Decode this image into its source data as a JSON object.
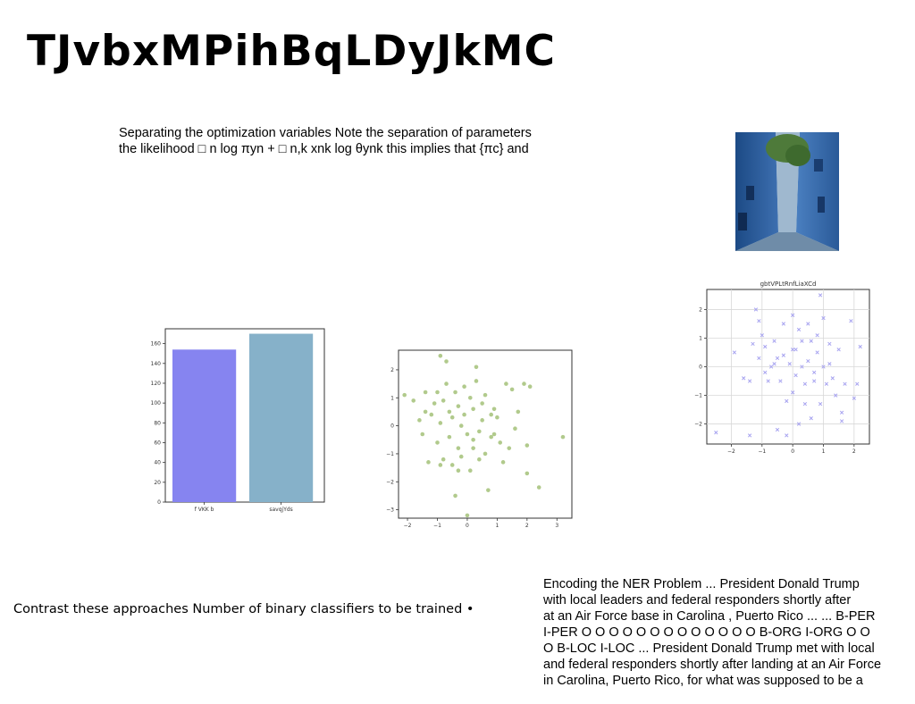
{
  "title": "TJvbxMPihBqLDyJkMC",
  "top_paragraph": {
    "lines": [
      "Separating the optimization variables Note the separation of parameters",
      "the likelihood □ n log πyn + □ n,k xnk log θynk this implies that {πc} and"
    ]
  },
  "left_text": "Contrast these approaches Number of binary classifiers to be trained •",
  "ner_paragraph": {
    "lines": [
      "Encoding the NER Problem ... President Donald Trump",
      "with local leaders and federal responders shortly after",
      "at an Air Force base in Carolina , Puerto Rico ... ... B-PER",
      "I-PER O O O O O O O O O O O O O B-ORG I-ORG O O",
      "O B-LOC I-LOC ... President Donald Trump met with local",
      "and federal responders shortly after landing at an Air Force",
      "in Carolina, Puerto Rico, for what was supposed to be a"
    ]
  },
  "chart_data": [
    {
      "type": "bar",
      "categories": [
        "f VKK b",
        "savqjYds"
      ],
      "values": [
        154,
        170
      ],
      "colors": [
        "#8684f0",
        "#86b1c9"
      ],
      "ylim": [
        0,
        175
      ],
      "yticks": [
        0,
        20,
        40,
        60,
        80,
        100,
        120,
        140,
        160
      ],
      "title": "",
      "xlabel": "",
      "ylabel": ""
    },
    {
      "type": "scatter",
      "marker": "circle",
      "color": "#a9c47f",
      "xlim": [
        -2.3,
        3.5
      ],
      "ylim": [
        -3.3,
        2.7
      ],
      "xticks": [
        -2,
        -1,
        0,
        1,
        2,
        3
      ],
      "yticks": [
        -3,
        -2,
        -1,
        0,
        1,
        2
      ],
      "points": [
        [
          -2.1,
          1.1
        ],
        [
          -1.6,
          0.2
        ],
        [
          -1.5,
          -0.3
        ],
        [
          -1.4,
          0.5
        ],
        [
          -1.3,
          -1.3
        ],
        [
          -1.2,
          0.4
        ],
        [
          -1.1,
          0.8
        ],
        [
          -1.0,
          -0.6
        ],
        [
          -1.0,
          1.2
        ],
        [
          -0.9,
          2.5
        ],
        [
          -0.9,
          0.1
        ],
        [
          -0.8,
          -1.2
        ],
        [
          -0.8,
          0.9
        ],
        [
          -0.7,
          2.3
        ],
        [
          -0.7,
          1.5
        ],
        [
          -0.6,
          0.5
        ],
        [
          -0.6,
          -0.4
        ],
        [
          -0.5,
          -1.4
        ],
        [
          -0.5,
          0.3
        ],
        [
          -0.4,
          -2.5
        ],
        [
          -0.4,
          1.2
        ],
        [
          -0.3,
          0.7
        ],
        [
          -0.3,
          -0.8
        ],
        [
          -0.2,
          0.0
        ],
        [
          -0.2,
          -1.1
        ],
        [
          -0.1,
          1.4
        ],
        [
          -0.1,
          0.4
        ],
        [
          0.0,
          -0.3
        ],
        [
          0.0,
          -3.2
        ],
        [
          0.1,
          1.0
        ],
        [
          0.1,
          -1.6
        ],
        [
          0.2,
          0.6
        ],
        [
          0.2,
          -0.5
        ],
        [
          0.3,
          2.1
        ],
        [
          0.3,
          1.6
        ],
        [
          0.4,
          -0.2
        ],
        [
          0.4,
          -1.2
        ],
        [
          0.5,
          0.8
        ],
        [
          0.5,
          0.2
        ],
        [
          0.6,
          -1.0
        ],
        [
          0.7,
          -2.3
        ],
        [
          0.8,
          0.4
        ],
        [
          0.8,
          -0.4
        ],
        [
          0.9,
          -0.3
        ],
        [
          1.0,
          0.3
        ],
        [
          1.1,
          -0.6
        ],
        [
          1.3,
          1.5
        ],
        [
          1.4,
          -0.8
        ],
        [
          1.5,
          1.3
        ],
        [
          1.6,
          -0.1
        ],
        [
          1.7,
          0.5
        ],
        [
          1.9,
          1.5
        ],
        [
          2.0,
          -0.7
        ],
        [
          2.0,
          -1.7
        ],
        [
          2.1,
          1.4
        ],
        [
          2.4,
          -2.2
        ],
        [
          3.2,
          -0.4
        ],
        [
          -1.8,
          0.9
        ],
        [
          -0.9,
          -1.4
        ],
        [
          0.6,
          1.1
        ],
        [
          1.2,
          -1.3
        ],
        [
          -0.3,
          -1.6
        ],
        [
          0.2,
          -0.8
        ],
        [
          -1.4,
          1.2
        ],
        [
          0.9,
          0.6
        ]
      ]
    },
    {
      "type": "scatter",
      "marker": "x",
      "title": "gbtVPLtRnfLiaXCd",
      "color": "#a7a3f0",
      "grid": true,
      "xlim": [
        -2.8,
        2.5
      ],
      "ylim": [
        -2.7,
        2.7
      ],
      "xticks": [
        -2,
        -1,
        0,
        1,
        2
      ],
      "yticks": [
        -2,
        -1,
        0,
        1,
        2
      ],
      "points": [
        [
          -2.5,
          -2.3
        ],
        [
          -1.9,
          0.5
        ],
        [
          -1.6,
          -0.4
        ],
        [
          -1.4,
          -2.4
        ],
        [
          -1.3,
          0.8
        ],
        [
          -1.2,
          2.0
        ],
        [
          -1.1,
          1.6
        ],
        [
          -1.1,
          0.3
        ],
        [
          -1.0,
          1.1
        ],
        [
          -0.9,
          -0.2
        ],
        [
          -0.9,
          0.7
        ],
        [
          -0.8,
          -0.5
        ],
        [
          -0.7,
          0.0
        ],
        [
          -0.6,
          0.9
        ],
        [
          -0.5,
          0.3
        ],
        [
          -0.5,
          -2.2
        ],
        [
          -0.4,
          -0.5
        ],
        [
          -0.3,
          0.4
        ],
        [
          -0.2,
          -1.2
        ],
        [
          -0.2,
          -2.4
        ],
        [
          -0.1,
          0.1
        ],
        [
          0.0,
          1.8
        ],
        [
          0.0,
          -0.9
        ],
        [
          0.1,
          0.6
        ],
        [
          0.1,
          -0.3
        ],
        [
          0.2,
          1.3
        ],
        [
          0.2,
          -2.0
        ],
        [
          0.3,
          0.9
        ],
        [
          0.4,
          -0.6
        ],
        [
          0.4,
          -1.3
        ],
        [
          0.5,
          0.2
        ],
        [
          0.5,
          1.5
        ],
        [
          0.6,
          -1.8
        ],
        [
          0.7,
          -0.2
        ],
        [
          0.8,
          1.1
        ],
        [
          0.8,
          0.5
        ],
        [
          0.9,
          -1.3
        ],
        [
          1.0,
          1.7
        ],
        [
          1.0,
          0.0
        ],
        [
          1.1,
          -0.6
        ],
        [
          1.2,
          0.8
        ],
        [
          1.3,
          -0.4
        ],
        [
          1.4,
          -1.0
        ],
        [
          1.5,
          0.6
        ],
        [
          1.6,
          -1.6
        ],
        [
          1.6,
          -1.9
        ],
        [
          1.7,
          -0.6
        ],
        [
          1.9,
          1.6
        ],
        [
          2.0,
          -1.1
        ],
        [
          2.2,
          0.7
        ],
        [
          -1.4,
          -0.5
        ],
        [
          -0.6,
          0.1
        ],
        [
          0.3,
          0.0
        ],
        [
          0.7,
          -0.5
        ],
        [
          -0.3,
          1.5
        ],
        [
          1.2,
          0.1
        ],
        [
          0.6,
          0.9
        ],
        [
          2.1,
          -0.6
        ],
        [
          0.9,
          2.5
        ],
        [
          0.0,
          0.6
        ]
      ]
    }
  ]
}
